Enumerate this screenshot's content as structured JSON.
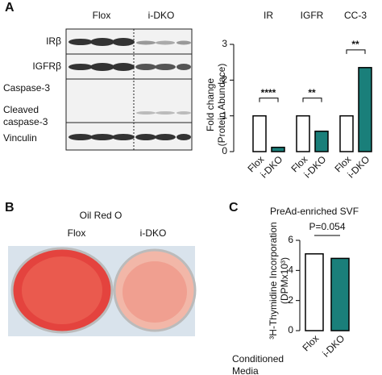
{
  "panels": {
    "a": "A",
    "b": "B",
    "c": "C"
  },
  "blot": {
    "columns": [
      "Flox",
      "i-DKO"
    ],
    "rows": [
      "IRβ",
      "IGFRβ",
      "Caspase-3",
      "Cleaved caspase-3",
      "Vinculin"
    ]
  },
  "image": {
    "title": "Oil Red O",
    "columns": [
      "Flox",
      "i-DKO"
    ]
  },
  "chart_data": [
    {
      "type": "bar",
      "categories": [
        "IR",
        "IGFR",
        "CC-3"
      ],
      "series": [
        {
          "name": "Flox",
          "color": "#ffffff",
          "values": [
            1.0,
            1.0,
            1.0
          ]
        },
        {
          "name": "i-DKO",
          "color": "#1a7f7a",
          "values": [
            0.12,
            0.57,
            2.35
          ]
        }
      ],
      "significance": [
        "****",
        "**",
        "**"
      ],
      "ylabel": [
        "Fold change",
        "(Protein Abundace)"
      ],
      "ylim": [
        0,
        3
      ],
      "yticks": [
        0,
        1,
        2,
        3
      ]
    },
    {
      "type": "bar",
      "title": "PreAd-enriched SVF",
      "annotation": "P=0.054",
      "categories": [
        "Flox",
        "i-DKO"
      ],
      "values": [
        5.1,
        4.8
      ],
      "colors": [
        "#ffffff",
        "#1a7f7a"
      ],
      "ylabel": [
        "³H-Thymidine Incorporation",
        "(DPMx10³)"
      ],
      "xlabel": [
        "Conditioned",
        "Media"
      ],
      "ylim": [
        0,
        6
      ],
      "yticks": [
        0,
        2,
        4,
        6
      ]
    }
  ]
}
